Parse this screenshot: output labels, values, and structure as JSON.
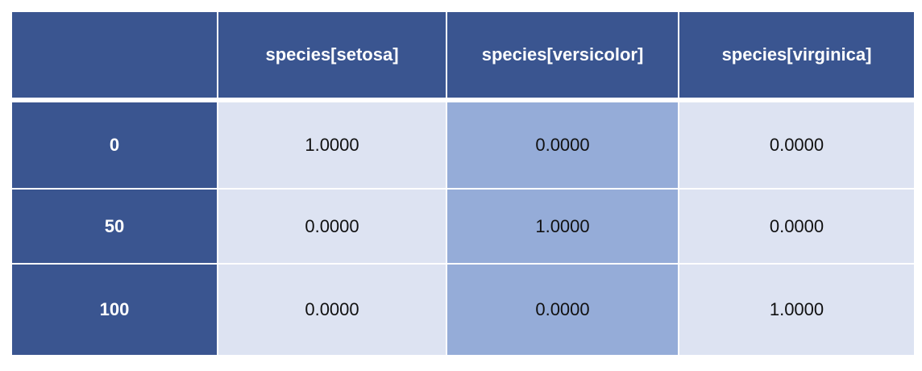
{
  "columns": [
    "",
    "species[setosa]",
    "species[versicolor]",
    "species[virginica]"
  ],
  "rows": [
    {
      "index": "0",
      "values": [
        "1.0000",
        "0.0000",
        "0.0000"
      ]
    },
    {
      "index": "50",
      "values": [
        "0.0000",
        "1.0000",
        "0.0000"
      ]
    },
    {
      "index": "100",
      "values": [
        "0.0000",
        "0.0000",
        "1.0000"
      ]
    }
  ],
  "colors": {
    "header": "#3a5590",
    "cell": "#dde3f2",
    "highlight_column": "#95acd8"
  }
}
